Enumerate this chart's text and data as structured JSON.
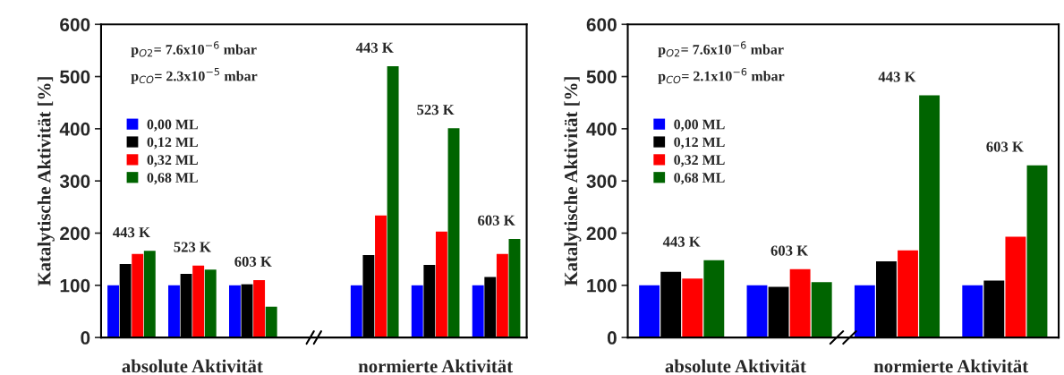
{
  "chart_data": [
    {
      "type": "bar",
      "ylabel": "Katalytische Aktivität [%]",
      "categories": [
        null,
        null,
        null,
        null,
        null,
        null,
        null
      ],
      "series": [
        {
          "name": "0,00 ML",
          "color": "#0000ff",
          "values": [
            100,
            100,
            100,
            null,
            100,
            100,
            100
          ]
        },
        {
          "name": "0,12 ML",
          "color": "#000000",
          "values": [
            141,
            122,
            102,
            null,
            158,
            139,
            116
          ]
        },
        {
          "name": "0,32 ML",
          "color": "#ff0000",
          "values": [
            160,
            138,
            110,
            null,
            234,
            203,
            160
          ]
        },
        {
          "name": "0,68 ML",
          "color": "#006400",
          "values": [
            166,
            130,
            59,
            null,
            520,
            401,
            189
          ]
        }
      ],
      "ylim": [
        0,
        600
      ],
      "yticks": [
        0,
        100,
        200,
        300,
        400,
        500,
        600
      ],
      "legend": "top left",
      "annotations": [
        "p$_{O2}$= 7.6x10$^{−6}$ mbar",
        "p$_{CO}$= 2.3x10$^{−5}$ mbar",
        "absolute Aktivität",
        "normierte Aktivität",
        "443 K",
        "523 K",
        "603 K",
        "443 K",
        "523 K",
        "603 K"
      ]
    },
    {
      "type": "bar",
      "ylabel": "Katalytische Aktivität [%]",
      "categories": [
        null,
        null,
        null,
        null
      ],
      "series": [
        {
          "name": "0,00 ML",
          "color": "#0000ff",
          "values": [
            100,
            100,
            100,
            100
          ]
        },
        {
          "name": "0,12 ML",
          "color": "#000000",
          "values": [
            126,
            97,
            146,
            109
          ]
        },
        {
          "name": "0,32 ML",
          "color": "#ff0000",
          "values": [
            113,
            131,
            167,
            193
          ]
        },
        {
          "name": "0,68 ML",
          "color": "#006400",
          "values": [
            148,
            106,
            464,
            330
          ]
        }
      ],
      "ylim": [
        0,
        600
      ],
      "yticks": [
        0,
        100,
        200,
        300,
        400,
        500,
        600
      ],
      "legend": "top left",
      "annotations": [
        "p$_{O2}$= 7.6x10$^{−6}$ mbar",
        "p$_{CO}$= 2.1x10$^{−6}$ mbar",
        "absolute Aktivität",
        "normierte Aktivität",
        "443 K",
        "603 K",
        "443 K",
        "603 K"
      ]
    }
  ]
}
